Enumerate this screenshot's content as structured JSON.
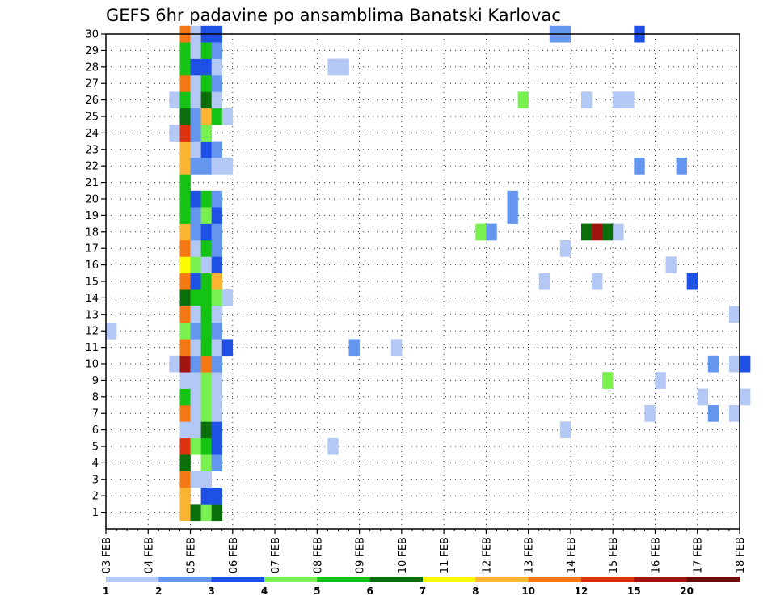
{
  "chart_data": {
    "type": "heatmap",
    "title": "GEFS 6hr padavine po ansamblima Banatski Karlovac",
    "x_ticks": [
      "03 FEB",
      "04 FEB",
      "05 FEB",
      "06 FEB",
      "07 FEB",
      "08 FEB",
      "09 FEB",
      "10 FEB",
      "11 FEB",
      "12 FEB",
      "13 FEB",
      "14 FEB",
      "15 FEB",
      "16 FEB",
      "17 FEB",
      "18 FEB"
    ],
    "y_ticks": [
      "1",
      "2",
      "3",
      "4",
      "5",
      "6",
      "7",
      "8",
      "9",
      "10",
      "11",
      "12",
      "13",
      "14",
      "15",
      "16",
      "17",
      "18",
      "19",
      "20",
      "21",
      "22",
      "23",
      "24",
      "25",
      "26",
      "27",
      "28",
      "29",
      "30"
    ],
    "x_range_days": [
      0,
      15
    ],
    "y_range": [
      0,
      30
    ],
    "grid": true,
    "colorbar": {
      "tick_labels": [
        "1",
        "2",
        "3",
        "4",
        "5",
        "6",
        "7",
        "8",
        "10",
        "12",
        "15",
        "20"
      ],
      "colors": [
        "#b4c8f5",
        "#6496f0",
        "#1e50e6",
        "#78f050",
        "#14c314",
        "#0a6e0a",
        "#fafa00",
        "#fab432",
        "#f57814",
        "#dc320f",
        "#a0140f",
        "#6e0a0a"
      ]
    },
    "cells": [
      {
        "m": 1,
        "d": 1.75,
        "c": 7
      },
      {
        "m": 1,
        "d": 2.0,
        "c": 5
      },
      {
        "m": 1,
        "d": 2.25,
        "c": 3
      },
      {
        "m": 1,
        "d": 2.5,
        "c": 5
      },
      {
        "m": 2,
        "d": 1.75,
        "c": 7
      },
      {
        "m": 2,
        "d": 2.25,
        "c": 2
      },
      {
        "m": 2,
        "d": 2.5,
        "c": 2
      },
      {
        "m": 3,
        "d": 1.75,
        "c": 8
      },
      {
        "m": 3,
        "d": 2.0,
        "c": 0
      },
      {
        "m": 3,
        "d": 2.25,
        "c": 0
      },
      {
        "m": 4,
        "d": 1.75,
        "c": 5
      },
      {
        "m": 4,
        "d": 2.25,
        "c": 3
      },
      {
        "m": 4,
        "d": 2.5,
        "c": 1
      },
      {
        "m": 5,
        "d": 1.75,
        "c": 9
      },
      {
        "m": 5,
        "d": 2.0,
        "c": 3
      },
      {
        "m": 5,
        "d": 2.25,
        "c": 4
      },
      {
        "m": 5,
        "d": 2.5,
        "c": 2
      },
      {
        "m": 5,
        "d": 5.25,
        "c": 0
      },
      {
        "m": 6,
        "d": 1.75,
        "c": 0
      },
      {
        "m": 6,
        "d": 2.0,
        "c": 0
      },
      {
        "m": 6,
        "d": 2.25,
        "c": 5
      },
      {
        "m": 6,
        "d": 2.5,
        "c": 2
      },
      {
        "m": 6,
        "d": 10.75,
        "c": 0
      },
      {
        "m": 7,
        "d": 1.75,
        "c": 8
      },
      {
        "m": 7,
        "d": 2.0,
        "c": 0
      },
      {
        "m": 7,
        "d": 2.25,
        "c": 3
      },
      {
        "m": 7,
        "d": 2.5,
        "c": 0
      },
      {
        "m": 7,
        "d": 12.75,
        "c": 0
      },
      {
        "m": 7,
        "d": 14.25,
        "c": 1
      },
      {
        "m": 7,
        "d": 14.75,
        "c": 0
      },
      {
        "m": 8,
        "d": 1.75,
        "c": 4
      },
      {
        "m": 8,
        "d": 2.0,
        "c": 0
      },
      {
        "m": 8,
        "d": 2.25,
        "c": 3
      },
      {
        "m": 8,
        "d": 2.5,
        "c": 0
      },
      {
        "m": 8,
        "d": 14.0,
        "c": 0
      },
      {
        "m": 8,
        "d": 15.0,
        "c": 0
      },
      {
        "m": 9,
        "d": 1.75,
        "c": 0
      },
      {
        "m": 9,
        "d": 2.0,
        "c": 0
      },
      {
        "m": 9,
        "d": 2.25,
        "c": 3
      },
      {
        "m": 9,
        "d": 2.5,
        "c": 0
      },
      {
        "m": 9,
        "d": 11.75,
        "c": 3
      },
      {
        "m": 9,
        "d": 13.0,
        "c": 0
      },
      {
        "m": 10,
        "d": 1.5,
        "c": 0
      },
      {
        "m": 10,
        "d": 1.75,
        "c": 10
      },
      {
        "m": 10,
        "d": 2.0,
        "c": 1
      },
      {
        "m": 10,
        "d": 2.25,
        "c": 8
      },
      {
        "m": 10,
        "d": 2.5,
        "c": 1
      },
      {
        "m": 10,
        "d": 14.25,
        "c": 1
      },
      {
        "m": 10,
        "d": 14.75,
        "c": 0
      },
      {
        "m": 10,
        "d": 15.0,
        "c": 2
      },
      {
        "m": 11,
        "d": 1.75,
        "c": 8
      },
      {
        "m": 11,
        "d": 2.0,
        "c": 0
      },
      {
        "m": 11,
        "d": 2.25,
        "c": 4
      },
      {
        "m": 11,
        "d": 2.5,
        "c": 0
      },
      {
        "m": 11,
        "d": 2.75,
        "c": 2
      },
      {
        "m": 11,
        "d": 5.75,
        "c": 1
      },
      {
        "m": 11,
        "d": 6.75,
        "c": 0
      },
      {
        "m": 12,
        "d": 0.0,
        "c": 0
      },
      {
        "m": 12,
        "d": 1.75,
        "c": 3
      },
      {
        "m": 12,
        "d": 2.0,
        "c": 1
      },
      {
        "m": 12,
        "d": 2.25,
        "c": 4
      },
      {
        "m": 12,
        "d": 2.5,
        "c": 1
      },
      {
        "m": 13,
        "d": 1.75,
        "c": 8
      },
      {
        "m": 13,
        "d": 2.0,
        "c": 0
      },
      {
        "m": 13,
        "d": 2.25,
        "c": 4
      },
      {
        "m": 13,
        "d": 2.5,
        "c": 0
      },
      {
        "m": 13,
        "d": 14.75,
        "c": 0
      },
      {
        "m": 14,
        "d": 1.75,
        "c": 5
      },
      {
        "m": 14,
        "d": 2.0,
        "c": 4
      },
      {
        "m": 14,
        "d": 2.25,
        "c": 4
      },
      {
        "m": 14,
        "d": 2.5,
        "c": 3
      },
      {
        "m": 14,
        "d": 2.75,
        "c": 0
      },
      {
        "m": 15,
        "d": 1.75,
        "c": 8
      },
      {
        "m": 15,
        "d": 2.0,
        "c": 2
      },
      {
        "m": 15,
        "d": 2.25,
        "c": 4
      },
      {
        "m": 15,
        "d": 2.5,
        "c": 7
      },
      {
        "m": 15,
        "d": 10.25,
        "c": 0
      },
      {
        "m": 15,
        "d": 11.5,
        "c": 0
      },
      {
        "m": 15,
        "d": 13.75,
        "c": 2
      },
      {
        "m": 16,
        "d": 1.75,
        "c": 6
      },
      {
        "m": 16,
        "d": 2.0,
        "c": 3
      },
      {
        "m": 16,
        "d": 2.25,
        "c": 0
      },
      {
        "m": 16,
        "d": 2.5,
        "c": 2
      },
      {
        "m": 16,
        "d": 13.25,
        "c": 0
      },
      {
        "m": 17,
        "d": 1.75,
        "c": 8
      },
      {
        "m": 17,
        "d": 2.0,
        "c": 0
      },
      {
        "m": 17,
        "d": 2.25,
        "c": 4
      },
      {
        "m": 17,
        "d": 2.5,
        "c": 1
      },
      {
        "m": 17,
        "d": 10.75,
        "c": 0
      },
      {
        "m": 18,
        "d": 1.75,
        "c": 7
      },
      {
        "m": 18,
        "d": 2.0,
        "c": 1
      },
      {
        "m": 18,
        "d": 2.25,
        "c": 2
      },
      {
        "m": 18,
        "d": 2.5,
        "c": 1
      },
      {
        "m": 18,
        "d": 8.75,
        "c": 3
      },
      {
        "m": 18,
        "d": 9.0,
        "c": 1
      },
      {
        "m": 18,
        "d": 11.25,
        "c": 5
      },
      {
        "m": 18,
        "d": 11.5,
        "c": 10
      },
      {
        "m": 18,
        "d": 11.75,
        "c": 5
      },
      {
        "m": 18,
        "d": 12.0,
        "c": 0
      },
      {
        "m": 19,
        "d": 1.75,
        "c": 4
      },
      {
        "m": 19,
        "d": 2.0,
        "c": 1
      },
      {
        "m": 19,
        "d": 2.25,
        "c": 3
      },
      {
        "m": 19,
        "d": 2.5,
        "c": 2
      },
      {
        "m": 19,
        "d": 9.5,
        "c": 1
      },
      {
        "m": 20,
        "d": 1.75,
        "c": 4
      },
      {
        "m": 20,
        "d": 2.0,
        "c": 2
      },
      {
        "m": 20,
        "d": 2.25,
        "c": 4
      },
      {
        "m": 20,
        "d": 2.5,
        "c": 1
      },
      {
        "m": 20,
        "d": 9.5,
        "c": 1
      },
      {
        "m": 21,
        "d": 1.75,
        "c": 4
      },
      {
        "m": 22,
        "d": 1.75,
        "c": 7
      },
      {
        "m": 22,
        "d": 2.0,
        "c": 1
      },
      {
        "m": 22,
        "d": 2.25,
        "c": 1
      },
      {
        "m": 22,
        "d": 2.5,
        "c": 0
      },
      {
        "m": 22,
        "d": 2.75,
        "c": 0
      },
      {
        "m": 22,
        "d": 12.5,
        "c": 1
      },
      {
        "m": 22,
        "d": 13.5,
        "c": 1
      },
      {
        "m": 23,
        "d": 1.75,
        "c": 7
      },
      {
        "m": 23,
        "d": 2.0,
        "c": 0
      },
      {
        "m": 23,
        "d": 2.25,
        "c": 2
      },
      {
        "m": 23,
        "d": 2.5,
        "c": 1
      },
      {
        "m": 24,
        "d": 1.5,
        "c": 0
      },
      {
        "m": 24,
        "d": 1.75,
        "c": 9
      },
      {
        "m": 24,
        "d": 2.0,
        "c": 1
      },
      {
        "m": 24,
        "d": 2.25,
        "c": 3
      },
      {
        "m": 25,
        "d": 1.75,
        "c": 5
      },
      {
        "m": 25,
        "d": 2.0,
        "c": 1
      },
      {
        "m": 25,
        "d": 2.25,
        "c": 7
      },
      {
        "m": 25,
        "d": 2.5,
        "c": 4
      },
      {
        "m": 25,
        "d": 2.75,
        "c": 0
      },
      {
        "m": 26,
        "d": 1.5,
        "c": 0
      },
      {
        "m": 26,
        "d": 1.75,
        "c": 4
      },
      {
        "m": 26,
        "d": 2.0,
        "c": 0
      },
      {
        "m": 26,
        "d": 2.25,
        "c": 5
      },
      {
        "m": 26,
        "d": 2.5,
        "c": 0
      },
      {
        "m": 26,
        "d": 9.75,
        "c": 3
      },
      {
        "m": 26,
        "d": 11.25,
        "c": 0
      },
      {
        "m": 26,
        "d": 12.0,
        "c": 0
      },
      {
        "m": 26,
        "d": 12.25,
        "c": 0
      },
      {
        "m": 27,
        "d": 1.75,
        "c": 8
      },
      {
        "m": 27,
        "d": 2.0,
        "c": 0
      },
      {
        "m": 27,
        "d": 2.25,
        "c": 4
      },
      {
        "m": 27,
        "d": 2.5,
        "c": 1
      },
      {
        "m": 28,
        "d": 1.75,
        "c": 4
      },
      {
        "m": 28,
        "d": 2.0,
        "c": 2
      },
      {
        "m": 28,
        "d": 2.25,
        "c": 2
      },
      {
        "m": 28,
        "d": 2.5,
        "c": 0
      },
      {
        "m": 28,
        "d": 5.25,
        "c": 0
      },
      {
        "m": 28,
        "d": 5.5,
        "c": 0
      },
      {
        "m": 29,
        "d": 1.75,
        "c": 4
      },
      {
        "m": 29,
        "d": 2.0,
        "c": 0
      },
      {
        "m": 29,
        "d": 2.25,
        "c": 4
      },
      {
        "m": 29,
        "d": 2.5,
        "c": 1
      },
      {
        "m": 30,
        "d": 1.75,
        "c": 8
      },
      {
        "m": 30,
        "d": 2.0,
        "c": 0
      },
      {
        "m": 30,
        "d": 2.25,
        "c": 2
      },
      {
        "m": 30,
        "d": 2.5,
        "c": 2
      },
      {
        "m": 30,
        "d": 10.5,
        "c": 1
      },
      {
        "m": 30,
        "d": 10.75,
        "c": 1
      },
      {
        "m": 30,
        "d": 12.5,
        "c": 2
      }
    ]
  }
}
